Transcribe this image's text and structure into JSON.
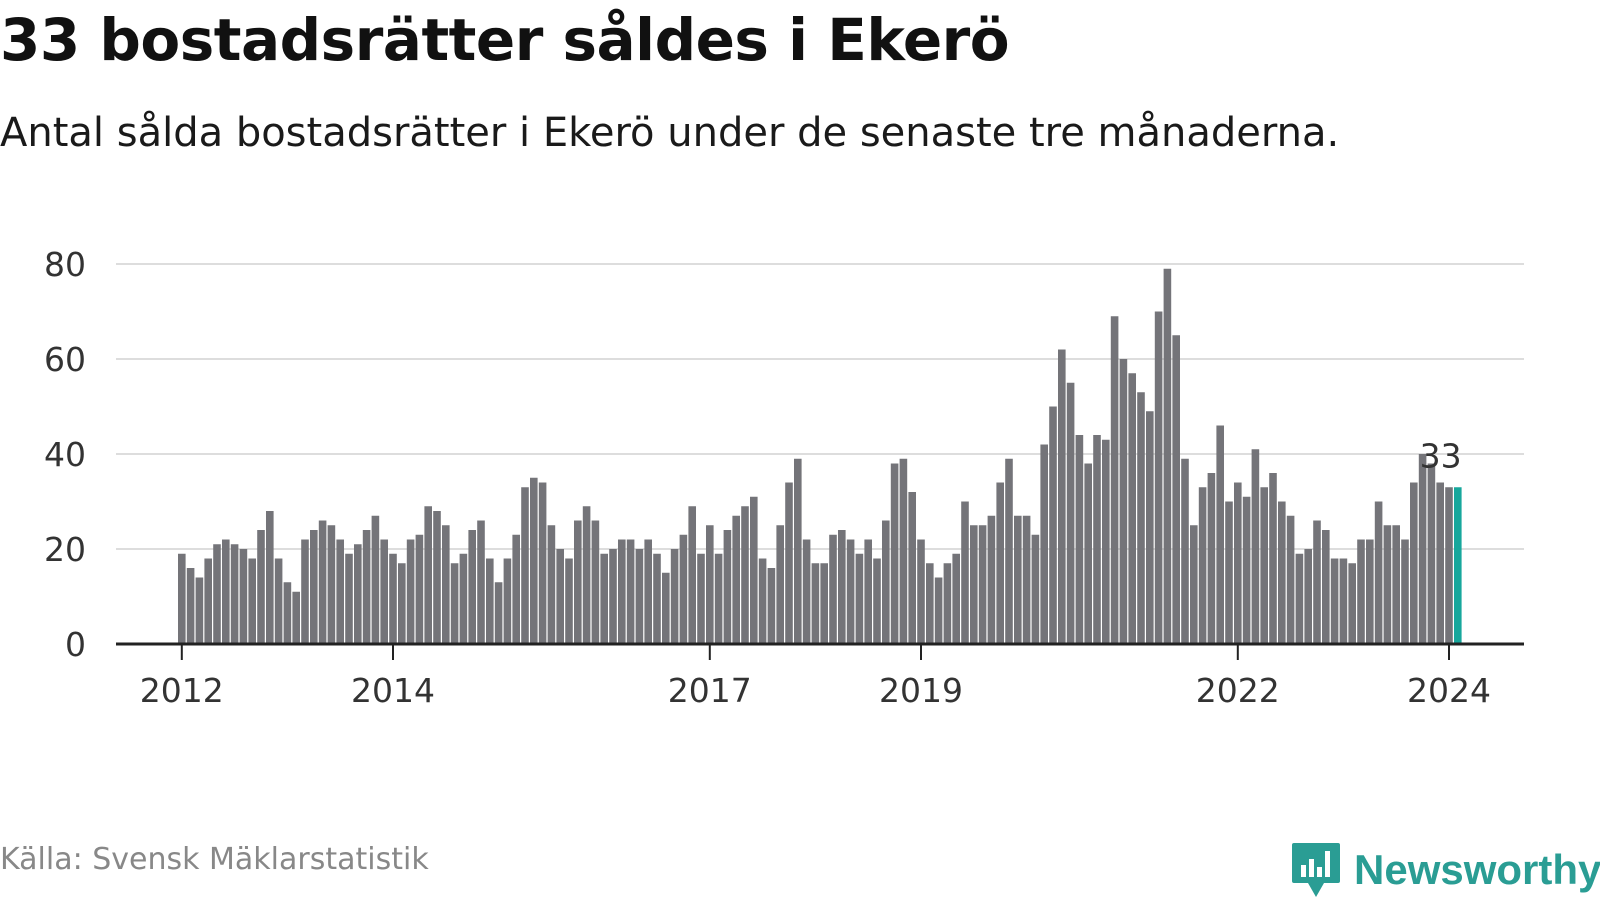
{
  "title": "33 bostadsrätter såldes i Ekerö",
  "subtitle": "Antal sålda bostadsrätter i Ekerö under de senaste tre månaderna.",
  "source": "Källa: Svensk Mäklarstatistik",
  "brand": {
    "name": "Newsworthy",
    "color": "#2a9d94",
    "icon": "bar-chart-speech-bubble-icon"
  },
  "colors": {
    "bar": "#747479",
    "highlight": "#17a79c",
    "axis": "#222222",
    "grid": "#dddddd"
  },
  "chart_data": {
    "type": "bar",
    "title": "33 bostadsrätter såldes i Ekerö",
    "xlabel": "",
    "ylabel": "",
    "ylim": [
      0,
      80
    ],
    "yticks": [
      0,
      20,
      40,
      60,
      80
    ],
    "xticks": [
      {
        "label": "2012",
        "index": 0
      },
      {
        "label": "2014",
        "index": 24
      },
      {
        "label": "2017",
        "index": 60
      },
      {
        "label": "2019",
        "index": 84
      },
      {
        "label": "2022",
        "index": 120
      },
      {
        "label": "2024",
        "index": 144
      }
    ],
    "start": "2012-01",
    "values": [
      19,
      16,
      14,
      18,
      21,
      22,
      21,
      20,
      18,
      24,
      28,
      18,
      13,
      11,
      22,
      24,
      26,
      25,
      22,
      19,
      21,
      24,
      27,
      22,
      19,
      17,
      22,
      23,
      29,
      28,
      25,
      17,
      19,
      24,
      26,
      18,
      13,
      18,
      23,
      33,
      35,
      34,
      25,
      20,
      18,
      26,
      29,
      26,
      19,
      20,
      22,
      22,
      20,
      22,
      19,
      15,
      20,
      23,
      29,
      19,
      25,
      19,
      24,
      27,
      29,
      31,
      18,
      16,
      25,
      34,
      39,
      22,
      17,
      17,
      23,
      24,
      22,
      19,
      22,
      18,
      26,
      38,
      39,
      32,
      22,
      17,
      14,
      17,
      19,
      30,
      25,
      25,
      27,
      34,
      39,
      27,
      27,
      23,
      42,
      50,
      62,
      55,
      44,
      38,
      44,
      43,
      69,
      60,
      57,
      53,
      49,
      70,
      79,
      65,
      39,
      25,
      33,
      36,
      46,
      30,
      34,
      31,
      41,
      33,
      36,
      30,
      27,
      19,
      20,
      26,
      24,
      18,
      18,
      17,
      22,
      22,
      30,
      25,
      25,
      22,
      34,
      40,
      38,
      34,
      33,
      33
    ],
    "highlight_index": 145,
    "annotation": {
      "label": "33",
      "index": 145,
      "value": 33
    }
  }
}
